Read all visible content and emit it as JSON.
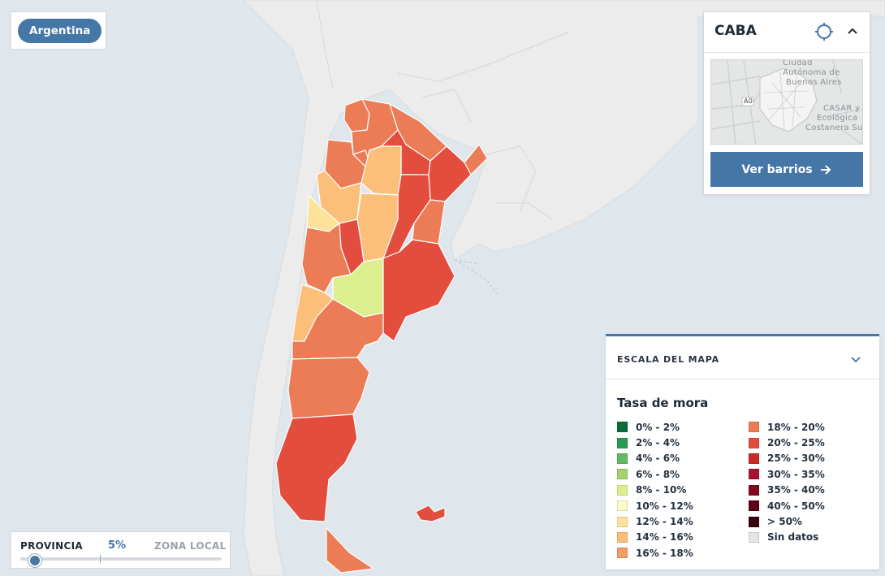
{
  "country_button": {
    "label": "Argentina"
  },
  "caba_panel": {
    "title": "CABA",
    "thumbnail_labels": [
      "Ciudad",
      "Autónoma de",
      "Buenos Aires",
      "CASAR y",
      "Ecológica",
      "Costanera Sur",
      "A0"
    ],
    "action_label": "Ver barrios"
  },
  "scale_panel": {
    "header": "ESCALA DEL MAPA",
    "subtitle": "Tasa de mora",
    "legend": [
      {
        "label": "0% - 2%",
        "color": "#0b6b3a"
      },
      {
        "label": "2% - 4%",
        "color": "#2a9a55"
      },
      {
        "label": "4% - 6%",
        "color": "#62bb63"
      },
      {
        "label": "6% - 8%",
        "color": "#a3d46a"
      },
      {
        "label": "8% - 10%",
        "color": "#dcef8e"
      },
      {
        "label": "10% - 12%",
        "color": "#fdfbc8"
      },
      {
        "label": "12% - 14%",
        "color": "#fde39a"
      },
      {
        "label": "14% - 16%",
        "color": "#fcbf7a"
      },
      {
        "label": "16% - 18%",
        "color": "#f59c67"
      },
      {
        "label": "18% - 20%",
        "color": "#ec7c56"
      },
      {
        "label": "20% - 25%",
        "color": "#e24d3e"
      },
      {
        "label": "25% - 30%",
        "color": "#cc2a26"
      },
      {
        "label": "30% - 35%",
        "color": "#aa1230"
      },
      {
        "label": "35% - 40%",
        "color": "#85071f"
      },
      {
        "label": "40% - 50%",
        "color": "#5e0016"
      },
      {
        "label": "> 50%",
        "color": "#3a000b"
      },
      {
        "label": "Sin datos",
        "color": "#e6e6e6"
      }
    ]
  },
  "zoom_control": {
    "left_label": "PROVINCIA",
    "value_label": "5%",
    "right_label": "ZONA LOCAL",
    "position": 0.05
  },
  "map": {
    "ocean_color": "#dfe6ec",
    "land_color": "#ececec",
    "provinces": [
      {
        "name": "Jujuy",
        "color": "#ec7c56"
      },
      {
        "name": "Salta",
        "color": "#ec7c56"
      },
      {
        "name": "Formosa",
        "color": "#ec7c56"
      },
      {
        "name": "Misiones",
        "color": "#ec7c56"
      },
      {
        "name": "Catamarca",
        "color": "#e24d3e"
      },
      {
        "name": "Tucumán",
        "color": "#e24d3e"
      },
      {
        "name": "Chaco",
        "color": "#ec7c56"
      },
      {
        "name": "Corrientes",
        "color": "#ec7c56"
      },
      {
        "name": "Santiago del Estero",
        "color": "#fcbf7a"
      },
      {
        "name": "Santa Fe",
        "color": "#fcbf7a"
      },
      {
        "name": "Entre Ríos",
        "color": "#fde39a"
      },
      {
        "name": "La Rioja",
        "color": "#e24d3e"
      },
      {
        "name": "San Juan",
        "color": "#ec7c56"
      },
      {
        "name": "Córdoba",
        "color": "#fcbf7a"
      },
      {
        "name": "San Luis",
        "color": "#e24d3e"
      },
      {
        "name": "Mendoza",
        "color": "#ec7c56"
      },
      {
        "name": "La Pampa",
        "color": "#dcef8e"
      },
      {
        "name": "Buenos Aires",
        "color": "#e24d3e"
      },
      {
        "name": "Neuquén",
        "color": "#fcbf7a"
      },
      {
        "name": "Río Negro",
        "color": "#ec7c56"
      },
      {
        "name": "Chubut",
        "color": "#ec7c56"
      },
      {
        "name": "Santa Cruz",
        "color": "#e24d3e"
      },
      {
        "name": "Tierra del Fuego",
        "color": "#ec7c56"
      },
      {
        "name": "Islas Malvinas",
        "color": "#e24d3e"
      }
    ]
  }
}
